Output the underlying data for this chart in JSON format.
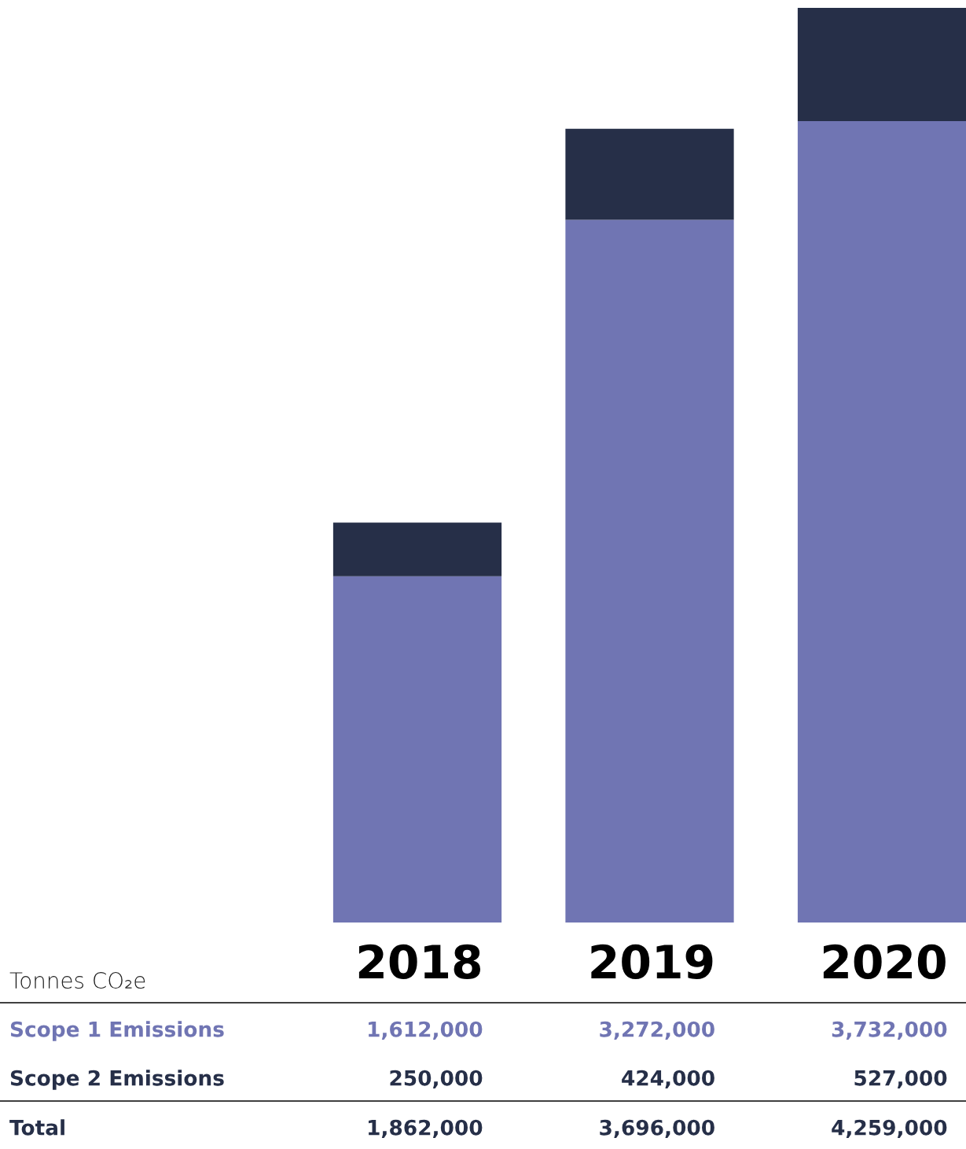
{
  "chart_data": {
    "type": "bar",
    "stacked": true,
    "categories": [
      "2018",
      "2019",
      "2020"
    ],
    "series": [
      {
        "name": "Scope 1 Emissions",
        "color": "#7075b3",
        "values": [
          1612000,
          3272000,
          3732000
        ],
        "value_labels": [
          "1,612,000",
          "3,272,000",
          "3,732,000"
        ]
      },
      {
        "name": "Scope 2 Emissions",
        "color": "#262f48",
        "values": [
          250000,
          424000,
          527000
        ],
        "value_labels": [
          "250,000",
          "424,000",
          "527,000"
        ]
      }
    ],
    "annotations": [
      "Tonnes CO₂e",
      "Total",
      "1,862,000",
      "3,696,000",
      "4,259,000"
    ]
  }
}
